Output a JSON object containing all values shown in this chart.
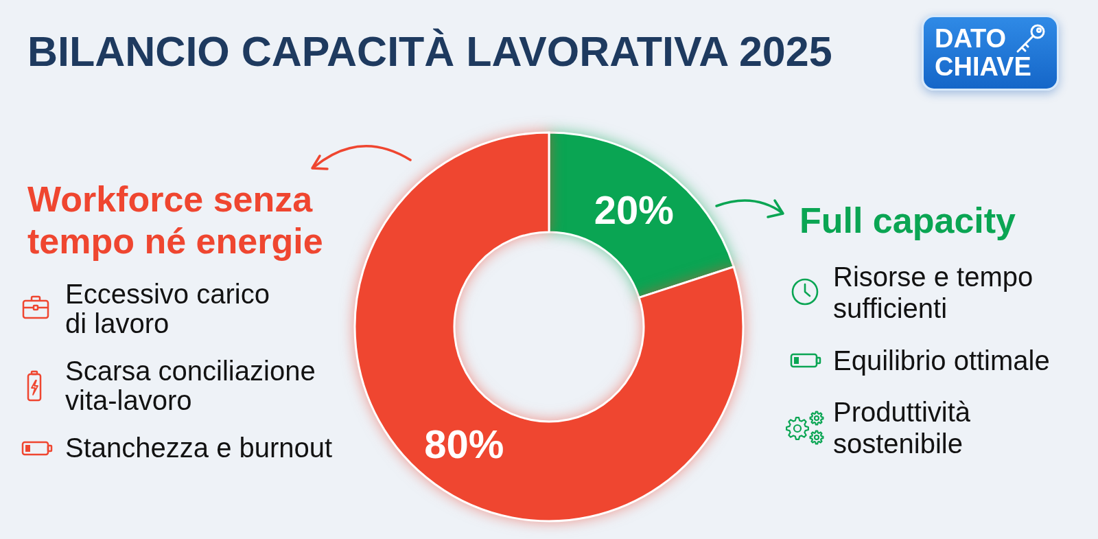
{
  "chart_data": {
    "type": "donut",
    "title": "BILANCIO CAPACITÀ LAVORATIVA 2025",
    "categories": [
      "Full capacity",
      "Workforce senza tempo né energie"
    ],
    "values": [
      20,
      80
    ],
    "colors": [
      "#0aa553",
      "#ef4630"
    ],
    "value_labels": [
      "20%",
      "80%"
    ],
    "annotations": [
      "DATO CHIAVE",
      "Eccessivo carico di lavoro",
      "Scarsa conciliazione vita-lavoro",
      "Stanchezza e burnout",
      "Risorse e tempo sufficienti",
      "Equilibrio ottimale",
      "Produttività sostenibile"
    ]
  }
}
